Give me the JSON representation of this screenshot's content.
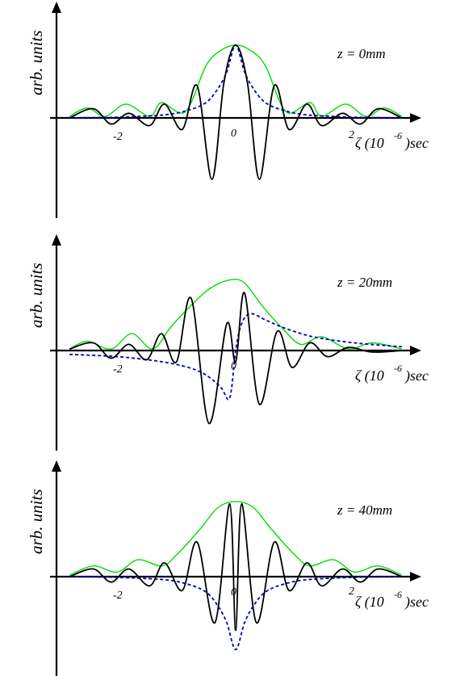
{
  "chart_data": [
    {
      "type": "line",
      "panel_label": "z = 0mm",
      "ylabel": "arb. units",
      "xlabel": "ζ (10^-6) sec",
      "tick_labels": [
        "-2",
        "0",
        "2"
      ],
      "x_ticks": [
        -2,
        0,
        2
      ],
      "xlim": [
        -3.05,
        3.05
      ],
      "series": [
        {
          "key": "oscillating",
          "color": "#000000",
          "style": "solid",
          "x": [
            -2.8,
            -2.4,
            -2.1,
            -1.8,
            -1.45,
            -1.2,
            -0.9,
            -0.65,
            -0.4,
            -0.2,
            0,
            0.2,
            0.4,
            0.65,
            0.9,
            1.2,
            1.45,
            1.8,
            2.1,
            2.4,
            2.8
          ],
          "y": [
            0.0,
            0.12,
            -0.08,
            0.06,
            -0.1,
            0.18,
            -0.15,
            0.42,
            -0.8,
            0.45,
            0.95,
            0.45,
            -0.8,
            0.42,
            -0.15,
            0.18,
            -0.1,
            0.06,
            -0.08,
            0.12,
            0.0
          ]
        },
        {
          "key": "envelope",
          "color": "#00dd00",
          "style": "solid",
          "x": [
            -2.8,
            -2.5,
            -2.2,
            -1.85,
            -1.45,
            -1.25,
            -0.85,
            -0.5,
            -0.25,
            0,
            0.25,
            0.5,
            0.85,
            1.25,
            1.45,
            1.85,
            2.2,
            2.5,
            2.8
          ],
          "y": [
            0.02,
            0.13,
            0.02,
            0.18,
            0.02,
            0.2,
            0.08,
            0.68,
            0.88,
            0.95,
            0.88,
            0.68,
            0.08,
            0.2,
            0.02,
            0.18,
            0.02,
            0.13,
            0.02
          ]
        },
        {
          "key": "dotted",
          "color": "#0000cc",
          "style": "dashed",
          "x": [
            -2.8,
            -2.0,
            -1.2,
            -0.8,
            -0.5,
            -0.3,
            -0.15,
            0,
            0.15,
            0.3,
            0.5,
            0.8,
            1.2,
            2.0,
            2.8
          ],
          "y": [
            0.0,
            0.01,
            0.04,
            0.1,
            0.2,
            0.38,
            0.6,
            0.95,
            0.6,
            0.38,
            0.2,
            0.1,
            0.04,
            0.01,
            0.0
          ]
        }
      ]
    },
    {
      "type": "line",
      "panel_label": "z = 20mm",
      "ylabel": "arb. units",
      "xlabel": "ζ (10^-6) sec",
      "tick_labels": [
        "-2",
        "0"
      ],
      "x_ticks": [
        -2,
        0
      ],
      "xlim": [
        -3.05,
        3.05
      ],
      "series": [
        {
          "key": "oscillating",
          "color": "#000000",
          "style": "solid",
          "x": [
            -2.8,
            -2.4,
            -2.1,
            -1.8,
            -1.5,
            -1.25,
            -1.0,
            -0.75,
            -0.45,
            -0.15,
            0.0,
            0.15,
            0.4,
            0.7,
            0.95,
            1.25,
            1.55,
            1.9,
            2.3,
            2.8
          ],
          "y": [
            0.02,
            0.1,
            -0.1,
            0.08,
            -0.12,
            0.22,
            -0.15,
            0.68,
            -0.95,
            0.35,
            -0.15,
            0.75,
            -0.7,
            0.25,
            -0.22,
            0.1,
            -0.08,
            0.04,
            -0.02,
            0.0
          ]
        },
        {
          "key": "envelope",
          "color": "#00dd00",
          "style": "solid",
          "x": [
            -2.8,
            -2.5,
            -2.1,
            -1.75,
            -1.4,
            -1.1,
            -0.8,
            -0.45,
            -0.1,
            0.15,
            0.45,
            0.8,
            1.1,
            1.45,
            1.9,
            2.3,
            2.8
          ],
          "y": [
            0.02,
            0.12,
            0.02,
            0.22,
            0.02,
            0.3,
            0.55,
            0.8,
            0.92,
            0.88,
            0.58,
            0.28,
            0.08,
            0.18,
            0.02,
            0.1,
            0.02
          ]
        },
        {
          "key": "dotted",
          "color": "#0000cc",
          "style": "dashed",
          "x": [
            -2.8,
            -2.0,
            -1.3,
            -0.8,
            -0.5,
            -0.25,
            -0.1,
            0,
            0.1,
            0.25,
            0.5,
            0.8,
            1.3,
            2.0,
            2.8
          ],
          "y": [
            -0.05,
            -0.08,
            -0.14,
            -0.22,
            -0.32,
            -0.48,
            -0.62,
            0.0,
            0.35,
            0.48,
            0.4,
            0.3,
            0.18,
            0.1,
            0.05
          ]
        }
      ]
    },
    {
      "type": "line",
      "panel_label": "z = 40mm",
      "ylabel": "arb. units",
      "xlabel": "ζ (10^-6) sec",
      "tick_labels": [
        "-2",
        "0",
        "2"
      ],
      "x_ticks": [
        -2,
        0,
        2
      ],
      "xlim": [
        -3.05,
        3.05
      ],
      "series": [
        {
          "key": "oscillating",
          "color": "#000000",
          "style": "solid",
          "x": [
            -2.8,
            -2.4,
            -2.1,
            -1.8,
            -1.45,
            -1.2,
            -0.9,
            -0.65,
            -0.35,
            -0.1,
            0,
            0.1,
            0.35,
            0.65,
            0.9,
            1.2,
            1.45,
            1.8,
            2.1,
            2.4,
            2.8
          ],
          "y": [
            0.0,
            0.1,
            -0.07,
            0.1,
            -0.12,
            0.18,
            -0.18,
            0.45,
            -0.6,
            0.95,
            -0.7,
            0.95,
            -0.6,
            0.45,
            -0.18,
            0.18,
            -0.12,
            0.1,
            -0.07,
            0.1,
            0.0
          ]
        },
        {
          "key": "envelope",
          "color": "#00dd00",
          "style": "solid",
          "x": [
            -2.8,
            -2.4,
            -2.0,
            -1.65,
            -1.25,
            -1.0,
            -0.6,
            -0.3,
            0,
            0.3,
            0.6,
            1.0,
            1.25,
            1.65,
            2.0,
            2.4,
            2.8
          ],
          "y": [
            0.02,
            0.14,
            0.06,
            0.22,
            0.14,
            0.28,
            0.62,
            0.9,
            0.98,
            0.9,
            0.62,
            0.28,
            0.14,
            0.22,
            0.06,
            0.14,
            0.02
          ]
        },
        {
          "key": "dotted",
          "color": "#0000cc",
          "style": "dashed",
          "x": [
            -2.8,
            -2.0,
            -1.2,
            -0.8,
            -0.5,
            -0.3,
            -0.15,
            0,
            0.15,
            0.3,
            0.5,
            0.8,
            1.2,
            2.0,
            2.8
          ],
          "y": [
            0.0,
            -0.01,
            -0.04,
            -0.1,
            -0.2,
            -0.38,
            -0.6,
            -0.95,
            -0.6,
            -0.38,
            -0.2,
            -0.1,
            -0.04,
            -0.01,
            0.0
          ]
        }
      ]
    }
  ]
}
